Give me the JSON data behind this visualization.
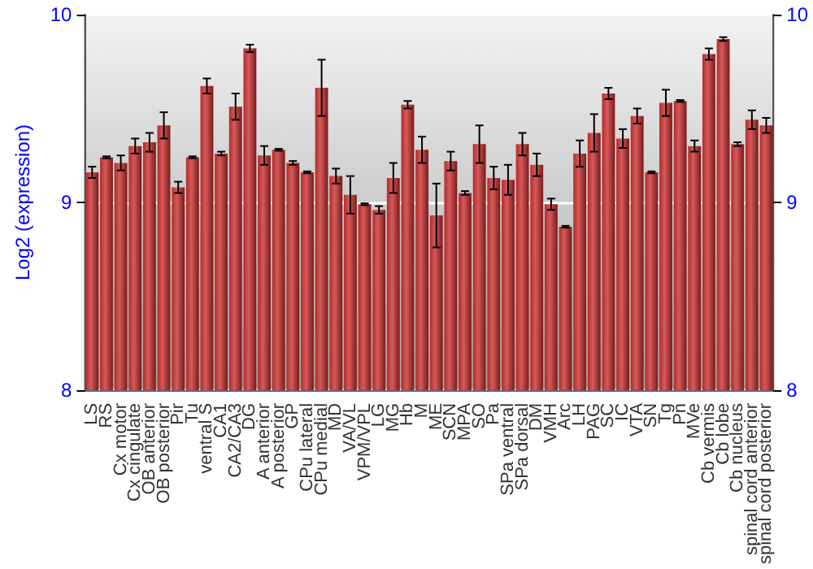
{
  "chart_data": {
    "type": "bar",
    "ylabel": "Log2 (expression)",
    "categories": [
      "LS",
      "RS",
      "Cx motor",
      "Cx cingulate",
      "OB anterior",
      "OB posterior",
      "Pir",
      "Tu",
      "ventral S",
      "CA1",
      "CA2/CA3",
      "DG",
      "A anterior",
      "A posterior",
      "GP",
      "CPu lateral",
      "CPu medial",
      "MD",
      "VA/VL",
      "VPM/VPL",
      "LG",
      "MG",
      "Hb",
      "M",
      "ME",
      "SCN",
      "MPA",
      "SO",
      "Pa",
      "SPa ventral",
      "SPa dorsal",
      "DM",
      "VMH",
      "Arc",
      "LH",
      "PAG",
      "SC",
      "IC",
      "VTA",
      "SN",
      "Tg",
      "Pn",
      "MVe",
      "Cb vermis",
      "Cb lobe",
      "Cb nucleus",
      "spinal cord anterior",
      "spinal cord posterior"
    ],
    "values": [
      9.16,
      9.24,
      9.21,
      9.3,
      9.32,
      9.41,
      9.08,
      9.24,
      9.62,
      9.26,
      9.51,
      9.82,
      9.25,
      9.28,
      9.21,
      9.16,
      9.61,
      9.14,
      9.04,
      8.99,
      8.96,
      9.13,
      9.52,
      9.28,
      8.93,
      9.22,
      9.05,
      9.31,
      9.13,
      9.12,
      9.31,
      9.2,
      8.99,
      8.87,
      9.26,
      9.37,
      9.58,
      9.34,
      9.46,
      9.16,
      9.53,
      9.54,
      9.3,
      9.79,
      9.87,
      9.31,
      9.44,
      9.41
    ],
    "errors": [
      0.03,
      0.005,
      0.04,
      0.04,
      0.05,
      0.07,
      0.03,
      0.005,
      0.04,
      0.01,
      0.07,
      0.02,
      0.05,
      0.005,
      0.01,
      0.005,
      0.15,
      0.04,
      0.1,
      0.005,
      0.02,
      0.08,
      0.02,
      0.07,
      0.17,
      0.05,
      0.01,
      0.1,
      0.06,
      0.08,
      0.06,
      0.06,
      0.03,
      0.005,
      0.07,
      0.1,
      0.03,
      0.05,
      0.04,
      0.005,
      0.07,
      0.005,
      0.03,
      0.03,
      0.01,
      0.01,
      0.05,
      0.04
    ],
    "color": "#b22a2a",
    "ylim": [
      8,
      10
    ],
    "yticks": [
      8,
      9,
      10
    ],
    "y2lim": [
      8,
      10
    ],
    "y2ticks": [
      8,
      9,
      10
    ],
    "grid": "y"
  }
}
